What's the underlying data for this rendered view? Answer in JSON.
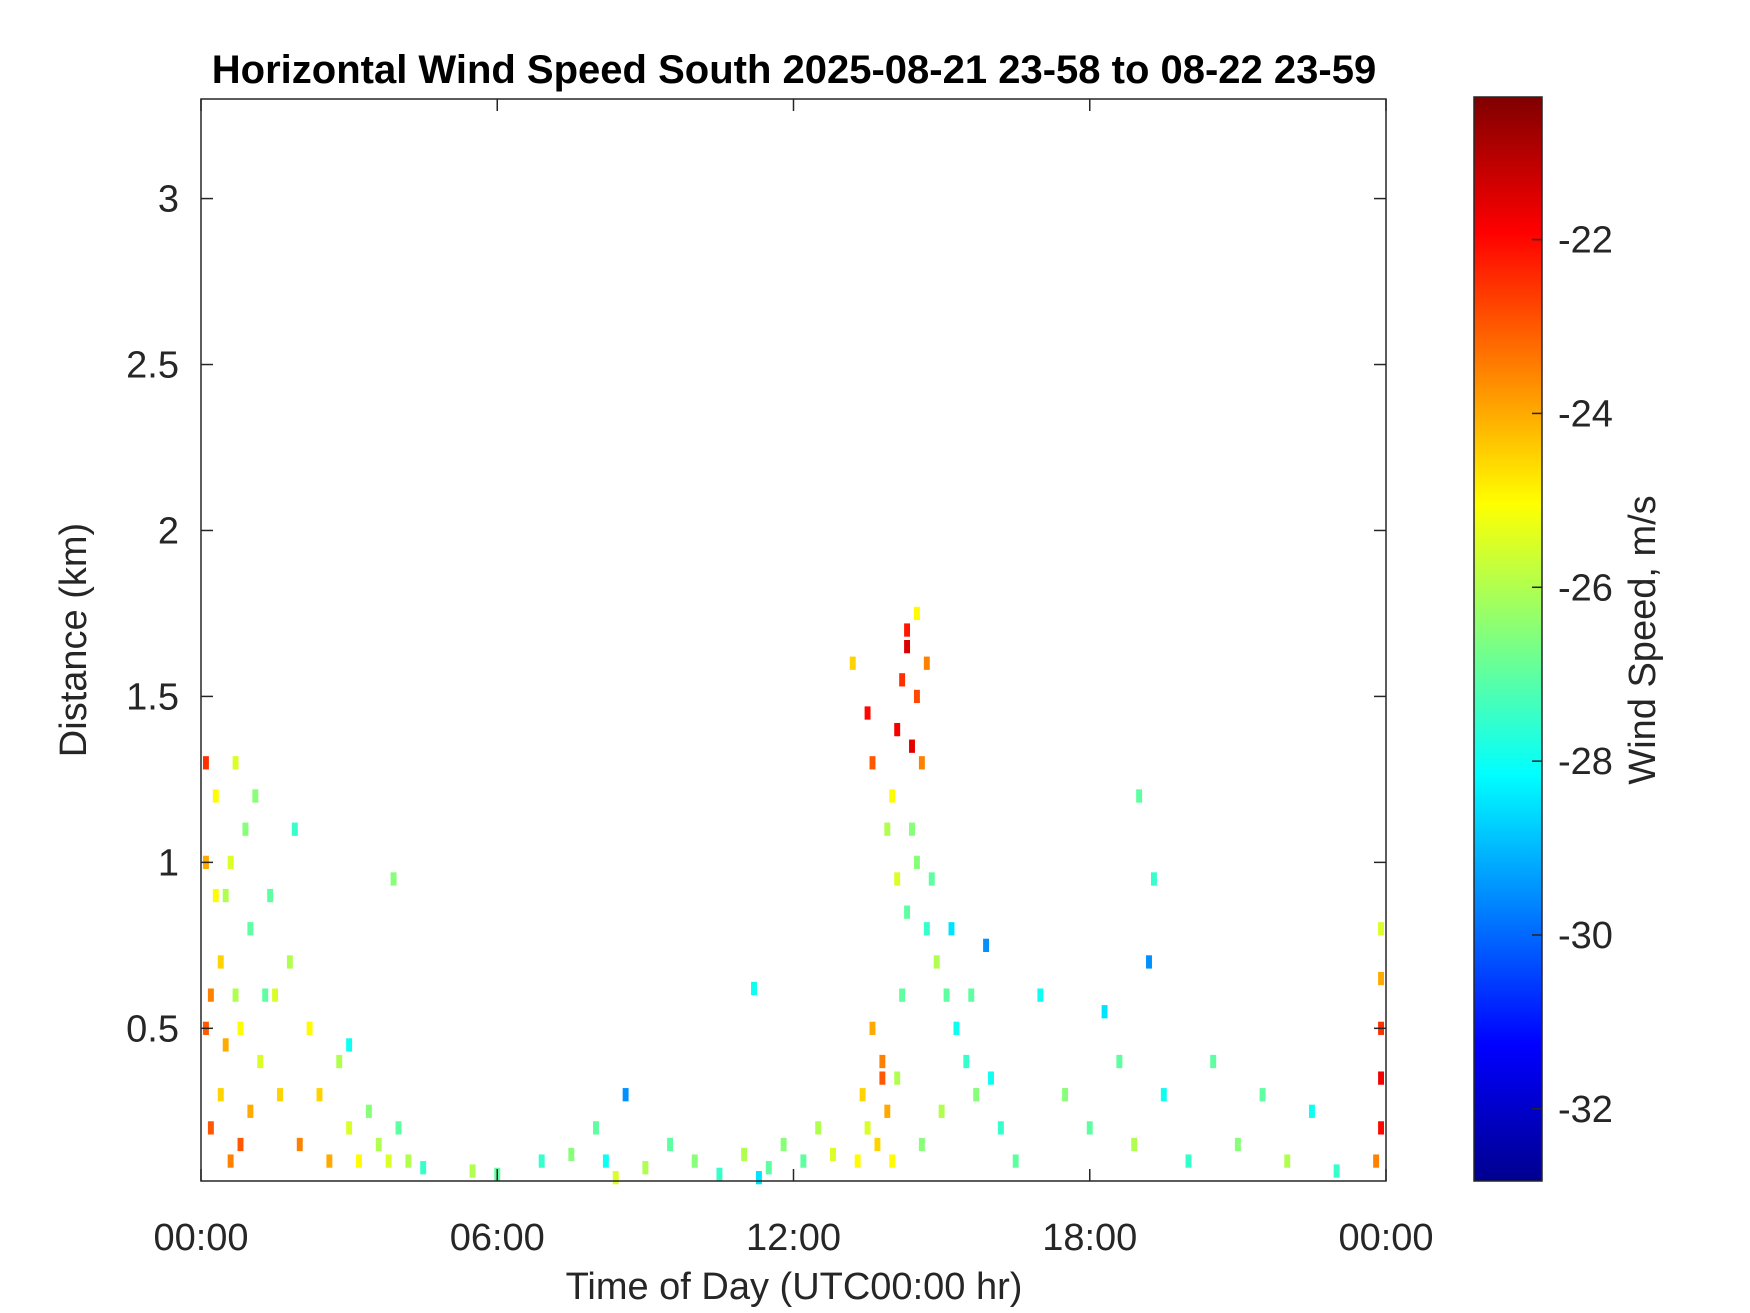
{
  "chart_data": {
    "type": "heatmap",
    "title": "Horizontal Wind Speed South 2025-08-21 23-58 to 08-22 23-59",
    "x_label": "Time of Day (UTC00:00 hr)",
    "y_label": "Distance (km)",
    "colorbar_label": "Wind Speed, m/s",
    "colormap": "jet",
    "xlim": [
      0,
      24
    ],
    "xticks": [
      {
        "value": 0,
        "label": "00:00"
      },
      {
        "value": 6,
        "label": "06:00"
      },
      {
        "value": 12,
        "label": "12:00"
      },
      {
        "value": 18,
        "label": "18:00"
      },
      {
        "value": 24,
        "label": "00:00"
      }
    ],
    "ylim": [
      0.04,
      3.3
    ],
    "yticks": [
      0.5,
      1,
      1.5,
      2,
      2.5,
      3
    ],
    "clim": [
      -32.83,
      -20.36
    ],
    "cticks": [
      -32,
      -30,
      -28,
      -26,
      -24,
      -22
    ],
    "x": [
      0.1,
      0.1,
      0.2,
      0.3,
      0.4,
      0.5,
      0.6,
      0.7,
      0.8,
      0.9,
      1.0,
      1.1,
      1.2,
      0.2,
      0.4,
      0.6,
      0.8,
      1.0,
      0.3,
      0.7,
      1.4,
      1.5,
      1.6,
      1.8,
      2.0,
      2.2,
      2.4,
      2.6,
      2.8,
      3.0,
      3.2,
      3.4,
      3.6,
      3.8,
      4.0,
      4.2,
      4.5,
      3.0,
      3.9,
      1.9,
      5.5,
      6.0,
      6.9,
      7.5,
      8.0,
      8.2,
      8.6,
      9.0,
      9.5,
      10.0,
      10.5,
      11.0,
      11.2,
      11.5,
      11.8,
      12.2,
      12.5,
      12.8,
      11.3,
      8.4,
      13.3,
      13.4,
      13.5,
      13.6,
      13.7,
      13.8,
      13.9,
      14.0,
      14.1,
      14.2,
      13.2,
      13.5,
      13.6,
      14.1,
      14.2,
      14.3,
      14.4,
      14.5,
      14.6,
      14.3,
      13.9,
      14.1,
      14.3,
      14.5,
      14.7,
      14.9,
      15.1,
      15.3,
      15.5,
      15.7,
      14.0,
      14.4,
      14.8,
      15.2,
      15.6,
      16.0,
      16.2,
      14.6,
      15.0,
      15.9,
      16.5,
      17.0,
      17.5,
      18.0,
      18.3,
      18.6,
      18.9,
      19.2,
      19.5,
      20.0,
      19.0,
      19.3,
      20.5,
      21.0,
      21.5,
      22.0,
      22.5,
      23.0,
      23.9,
      23.9,
      23.9,
      23.9,
      23.9,
      23.8,
      0.1,
      0.5,
      1.3,
      14.5,
      14.7,
      13.8
    ],
    "y": [
      1.3,
      1.0,
      0.6,
      1.2,
      0.3,
      0.9,
      0.1,
      1.3,
      0.5,
      1.1,
      0.8,
      1.2,
      0.4,
      0.2,
      0.7,
      1.0,
      0.15,
      0.25,
      0.9,
      0.6,
      0.9,
      0.6,
      0.3,
      0.7,
      0.15,
      0.5,
      0.3,
      0.1,
      0.4,
      0.2,
      0.1,
      0.25,
      0.15,
      0.1,
      0.2,
      0.1,
      0.08,
      0.45,
      0.95,
      1.1,
      0.07,
      0.06,
      0.1,
      0.12,
      0.2,
      0.1,
      0.3,
      0.08,
      0.15,
      0.1,
      0.06,
      0.12,
      0.62,
      0.08,
      0.15,
      0.1,
      0.2,
      0.12,
      0.05,
      0.05,
      0.1,
      0.3,
      0.2,
      0.5,
      0.15,
      0.4,
      0.25,
      0.1,
      0.35,
      0.6,
      1.6,
      1.45,
      1.3,
      1.4,
      1.55,
      1.65,
      1.35,
      1.5,
      1.3,
      1.7,
      1.1,
      0.95,
      0.85,
      1.0,
      0.8,
      0.7,
      0.6,
      0.5,
      0.4,
      0.3,
      1.2,
      1.1,
      0.95,
      0.8,
      0.6,
      0.35,
      0.2,
      0.15,
      0.25,
      0.75,
      0.1,
      0.6,
      0.3,
      0.2,
      0.55,
      0.4,
      0.15,
      0.7,
      0.3,
      0.1,
      1.2,
      0.95,
      0.4,
      0.15,
      0.3,
      0.1,
      0.25,
      0.07,
      0.2,
      0.5,
      0.35,
      0.65,
      0.8,
      0.1,
      0.5,
      0.45,
      0.6,
      1.75,
      1.6,
      0.35
    ],
    "values": [
      -22.5,
      -24,
      -23.5,
      -25,
      -24.5,
      -26,
      -23.5,
      -25.5,
      -25,
      -26.5,
      -27,
      -26.5,
      -25.5,
      -23,
      -24.5,
      -25.5,
      -23,
      -24,
      -25,
      -26,
      -27,
      -25.5,
      -24.5,
      -26,
      -23.5,
      -25,
      -24.5,
      -24,
      -26,
      -25.5,
      -25,
      -26.5,
      -26,
      -25.5,
      -27,
      -26,
      -27.5,
      -28,
      -26.5,
      -27.5,
      -26,
      -27,
      -27.5,
      -26.5,
      -27,
      -28,
      -29.5,
      -26,
      -27,
      -26.5,
      -27.5,
      -26,
      -28,
      -27,
      -26.5,
      -27,
      -26,
      -25.5,
      -28.5,
      -25.5,
      -25,
      -24.5,
      -25.5,
      -24,
      -24.5,
      -23.5,
      -24,
      -25,
      -26,
      -27,
      -24.5,
      -22,
      -23,
      -21.8,
      -22.5,
      -21.5,
      -21.6,
      -22.8,
      -23.5,
      -22.2,
      -26,
      -25.5,
      -27,
      -26.5,
      -27.5,
      -26,
      -27,
      -28,
      -27.5,
      -26.5,
      -25,
      -26.5,
      -27,
      -28.5,
      -27,
      -28,
      -27.5,
      -26.5,
      -26,
      -29.5,
      -27,
      -28,
      -26.5,
      -27,
      -28.5,
      -27,
      -26,
      -29.5,
      -28,
      -27.5,
      -27,
      -27.5,
      -27,
      -26.5,
      -27,
      -26,
      -28,
      -27.5,
      -22,
      -22.5,
      -21.8,
      -24,
      -25.5,
      -23.5,
      -23,
      -24,
      -27,
      -25,
      -23.5,
      -23
    ]
  }
}
